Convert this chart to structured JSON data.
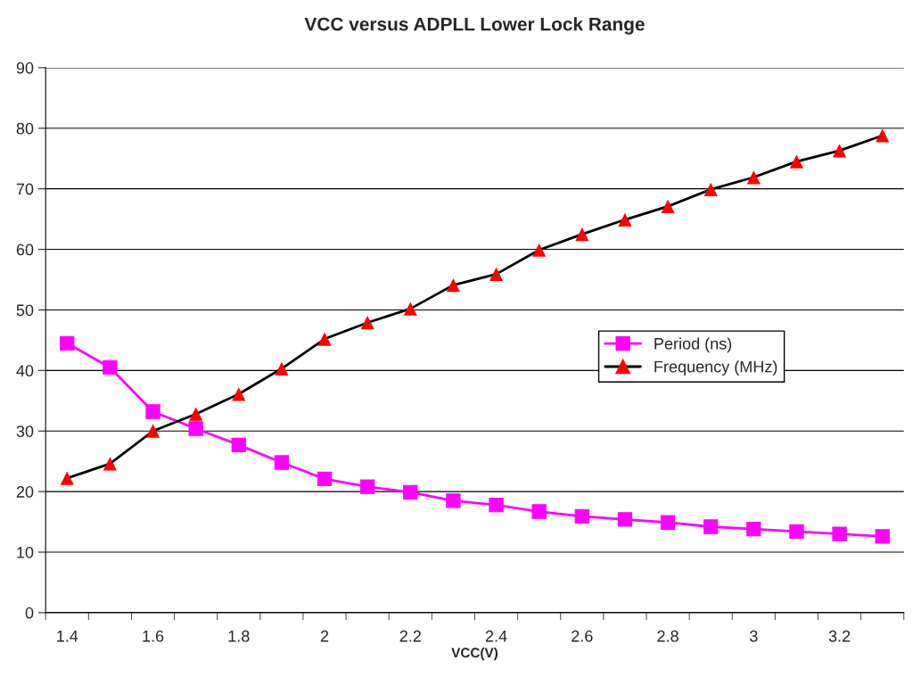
{
  "chart_data": {
    "type": "line",
    "title": "VCC versus ADPLL Lower Lock Range",
    "xlabel": "VCC(V)",
    "categories": [
      "1.4",
      null,
      "1.6",
      null,
      "1.8",
      null,
      "2",
      null,
      "2.2",
      null,
      "2.4",
      null,
      "2.6",
      null,
      "2.8",
      null,
      "3",
      null,
      "3.2",
      null
    ],
    "series": [
      {
        "name": "Period (ns)",
        "color": "#ff00ff",
        "marker": "square",
        "values": [
          44.5,
          40.5,
          33.2,
          30.4,
          27.7,
          24.8,
          22.1,
          20.8,
          19.9,
          18.5,
          17.8,
          16.7,
          15.9,
          15.4,
          14.9,
          14.2,
          13.8,
          13.4,
          13.0,
          12.6
        ]
      },
      {
        "name": "Frequency (MHz)",
        "color": "#000000",
        "colors": [
          "#ff0000",
          "#ff0000",
          "#ff0000",
          "#ff0000",
          "#ff0000",
          "#ff0000",
          "#ff0000",
          "#ff0000",
          "#ff0000",
          "#ff0000",
          "#ff0000",
          "#ff0000",
          "#ff0000",
          "#ff0000",
          "#ff0000",
          "#ff0000",
          "#ff0000",
          "#ff0000",
          "#ff0000",
          "#ff0000"
        ],
        "marker": "triangle",
        "values": [
          22.2,
          24.6,
          30.0,
          32.8,
          36.1,
          40.3,
          45.2,
          47.9,
          50.2,
          54.1,
          55.9,
          59.9,
          62.5,
          64.9,
          67.1,
          69.9,
          71.9,
          74.5,
          76.3,
          78.8
        ]
      }
    ],
    "ylim": [
      0,
      90
    ],
    "yticks": [
      0,
      10,
      20,
      30,
      40,
      50,
      60,
      70,
      80,
      90
    ],
    "grid": "y",
    "legend": "right"
  }
}
